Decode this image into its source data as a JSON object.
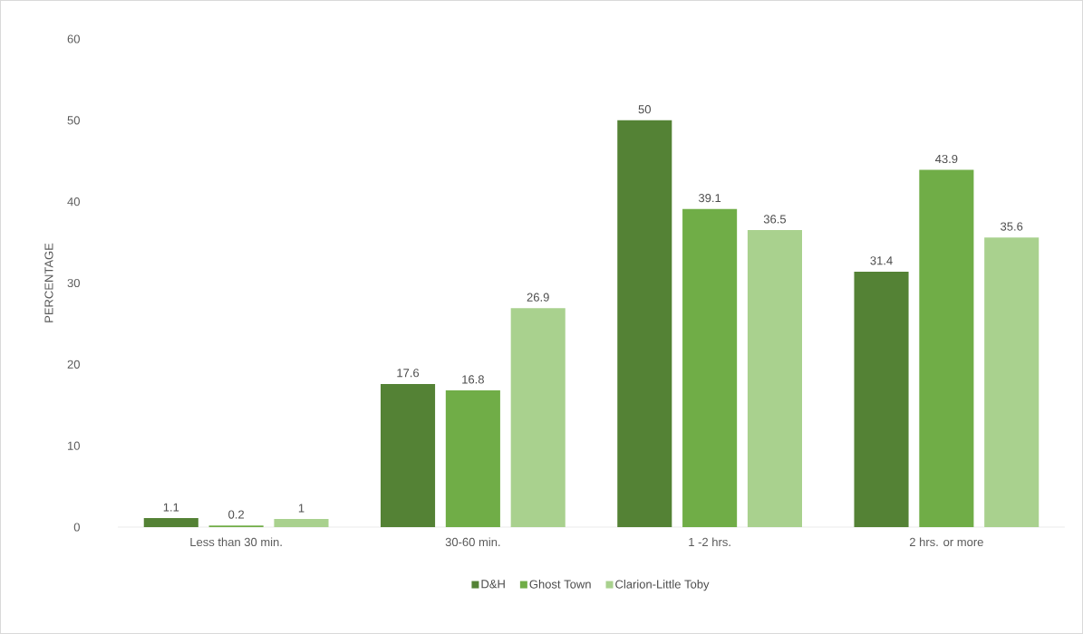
{
  "chart_data": {
    "type": "bar",
    "ylabel": "PERCENTAGE",
    "categories": [
      "Less than 30 min.",
      "30-60 min.",
      "1 -2 hrs.",
      "2 hrs. or more"
    ],
    "series": [
      {
        "name": "D&H",
        "color": "#548235",
        "values": [
          1.1,
          17.6,
          50,
          31.4
        ]
      },
      {
        "name": "Ghost Town",
        "color": "#70ad47",
        "values": [
          0.2,
          16.8,
          39.1,
          43.9
        ]
      },
      {
        "name": "Clarion-Little Toby",
        "color": "#a9d18e",
        "values": [
          1,
          26.9,
          36.5,
          35.6
        ]
      }
    ],
    "ylim": [
      0,
      60
    ],
    "yticks": [
      0,
      10,
      20,
      30,
      40,
      50,
      60
    ],
    "data_labels": true,
    "legend": "bottom"
  }
}
